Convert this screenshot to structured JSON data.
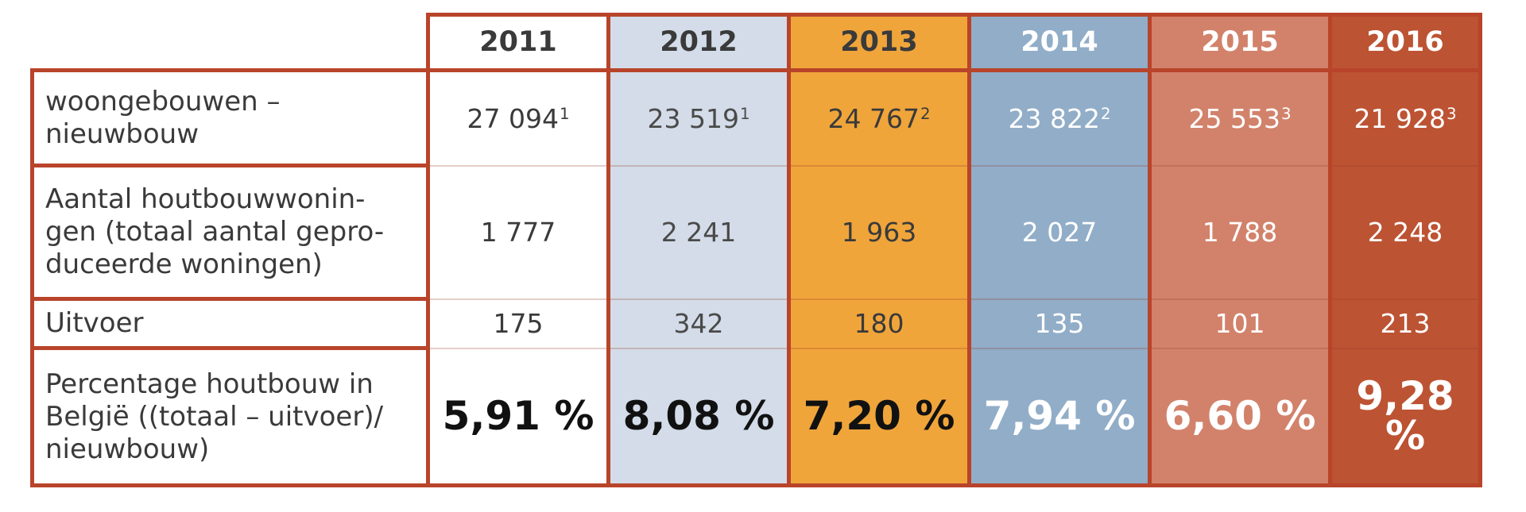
{
  "years": [
    "2011",
    "2012",
    "2013",
    "2014",
    "2015",
    "2016"
  ],
  "rows": {
    "new_buildings": {
      "label_lines": [
        "woongebouwen –",
        "nieuwbouw"
      ],
      "values": [
        "27 094",
        "23 519",
        "24 767",
        "23 822",
        "25 553",
        "21 928"
      ],
      "footnotes": [
        "1",
        "1",
        "2",
        "2",
        "3",
        "3"
      ]
    },
    "timber_homes": {
      "label_lines": [
        "Aantal houtbouwwonin-",
        "gen (totaal aantal gepro-",
        "duceerde woningen)"
      ],
      "values": [
        "1 777",
        "2 241",
        "1 963",
        "2 027",
        "1 788",
        "2 248"
      ]
    },
    "export": {
      "label_lines": [
        "Uitvoer"
      ],
      "values": [
        "175",
        "342",
        "180",
        "135",
        "101",
        "213"
      ]
    },
    "percentage": {
      "label_lines": [
        "Percentage houtbouw in",
        "België ((totaal – uitvoer)/",
        "nieuwbouw)"
      ],
      "values": [
        "5,91 %",
        "8,08 %",
        "7,20 %",
        "7,94 %",
        "6,60 %",
        "9,28 %"
      ]
    }
  },
  "colors": {
    "border": "#b8442a",
    "2011": "#ffffff",
    "2012": "#d3dce8",
    "2013": "#f0a53b",
    "2014": "#91adc8",
    "2015": "#d2826b",
    "2016": "#bc5333"
  }
}
